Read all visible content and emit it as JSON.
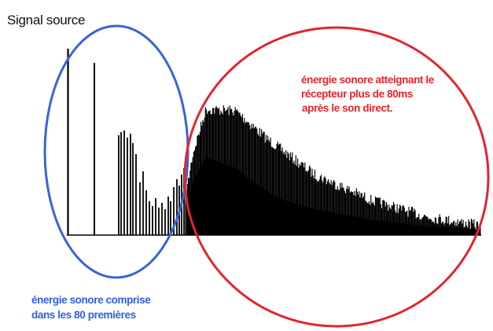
{
  "title": "Signal source",
  "colors": {
    "signal": "#000000",
    "early_circle": "#3b63d8",
    "late_circle": "#e22530",
    "early_text": "#2f5fe0",
    "late_text": "#e8242e"
  },
  "annotations": {
    "late": {
      "lines": [
        "énergie sonore atteignant le",
        "récepteur plus de 80ms",
        "après le son direct."
      ]
    },
    "early": {
      "lines": [
        "énergie sonore comprise",
        "dans les 80 premières"
      ]
    }
  }
}
